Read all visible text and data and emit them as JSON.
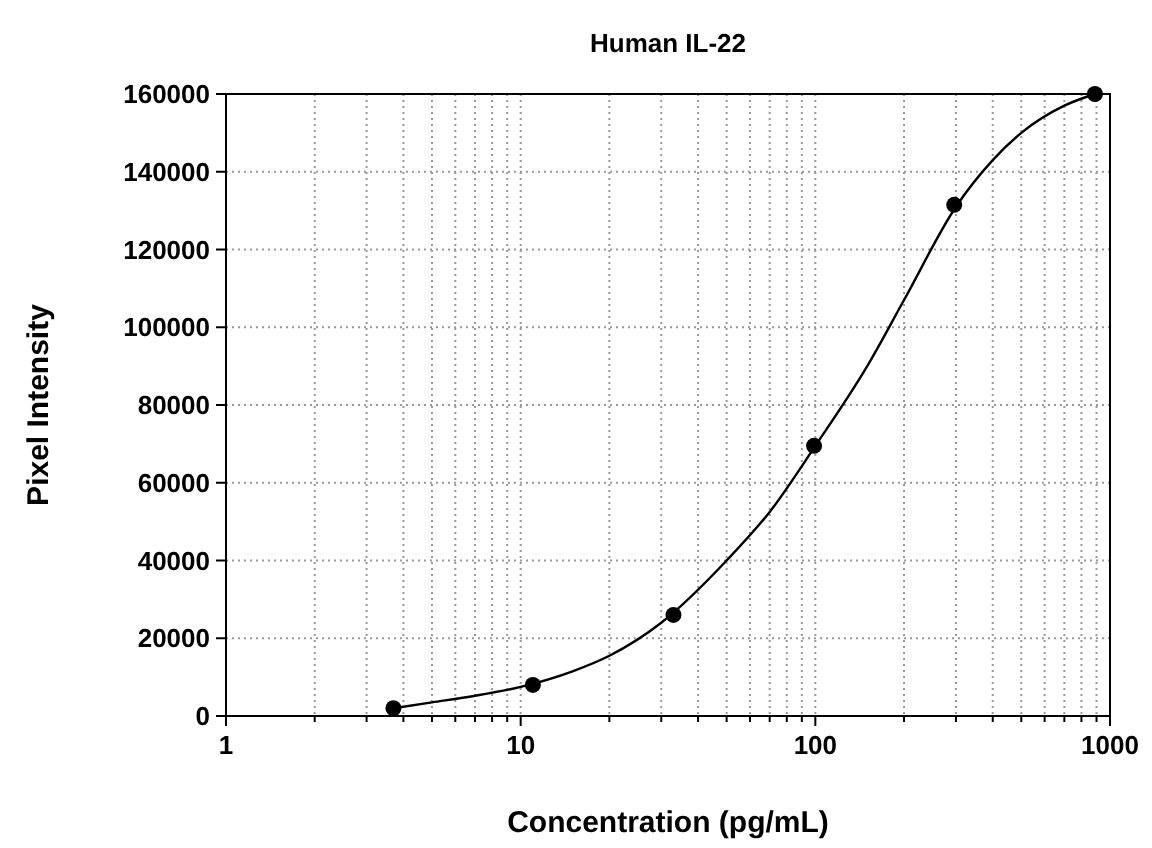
{
  "chart_data": {
    "type": "scatter",
    "title": "Human IL-22",
    "xlabel": "Concentration (pg/mL)",
    "ylabel": "Pixel Intensity",
    "log": "x",
    "grid": true,
    "xlim": [
      1,
      1000
    ],
    "ylim": [
      0,
      160000
    ],
    "xticks": [
      1,
      {
        "value": 2,
        "label": null
      },
      {
        "value": 3,
        "label": null
      },
      {
        "value": 4,
        "label": null
      },
      {
        "value": 5,
        "label": null
      },
      {
        "value": 6,
        "label": null
      },
      {
        "value": 7,
        "label": null
      },
      {
        "value": 8,
        "label": null
      },
      {
        "value": 9,
        "label": null
      },
      10,
      {
        "value": 20,
        "label": null
      },
      {
        "value": 30,
        "label": null
      },
      {
        "value": 40,
        "label": null
      },
      {
        "value": 50,
        "label": null
      },
      {
        "value": 60,
        "label": null
      },
      {
        "value": 70,
        "label": null
      },
      {
        "value": 80,
        "label": null
      },
      {
        "value": 90,
        "label": null
      },
      100,
      {
        "value": 200,
        "label": null
      },
      {
        "value": 300,
        "label": null
      },
      {
        "value": 400,
        "label": null
      },
      {
        "value": 500,
        "label": null
      },
      {
        "value": 600,
        "label": null
      },
      {
        "value": 700,
        "label": null
      },
      {
        "value": 800,
        "label": null
      },
      {
        "value": 900,
        "label": null
      },
      1000
    ],
    "yticks": [
      0,
      20000,
      40000,
      60000,
      80000,
      100000,
      120000,
      140000,
      160000
    ],
    "series": [
      {
        "type": "line",
        "color": "#000000",
        "marker": "none",
        "line_style": "solid",
        "x": [
          3.7,
          5,
          7,
          10,
          15,
          20,
          30,
          50,
          70,
          100,
          150,
          200,
          300,
          400,
          500,
          700,
          889
        ],
        "values": [
          2000,
          3500,
          5200,
          7500,
          11500,
          15500,
          24000,
          40000,
          52500,
          69500,
          90000,
          107000,
          131000,
          143000,
          150000,
          157000,
          160000
        ]
      },
      {
        "color": "#000000",
        "marker": "circle",
        "x": [
          3.7,
          11,
          33,
          99,
          296,
          889
        ],
        "values": [
          2000,
          8000,
          26000,
          69500,
          131500,
          160000
        ]
      }
    ]
  }
}
